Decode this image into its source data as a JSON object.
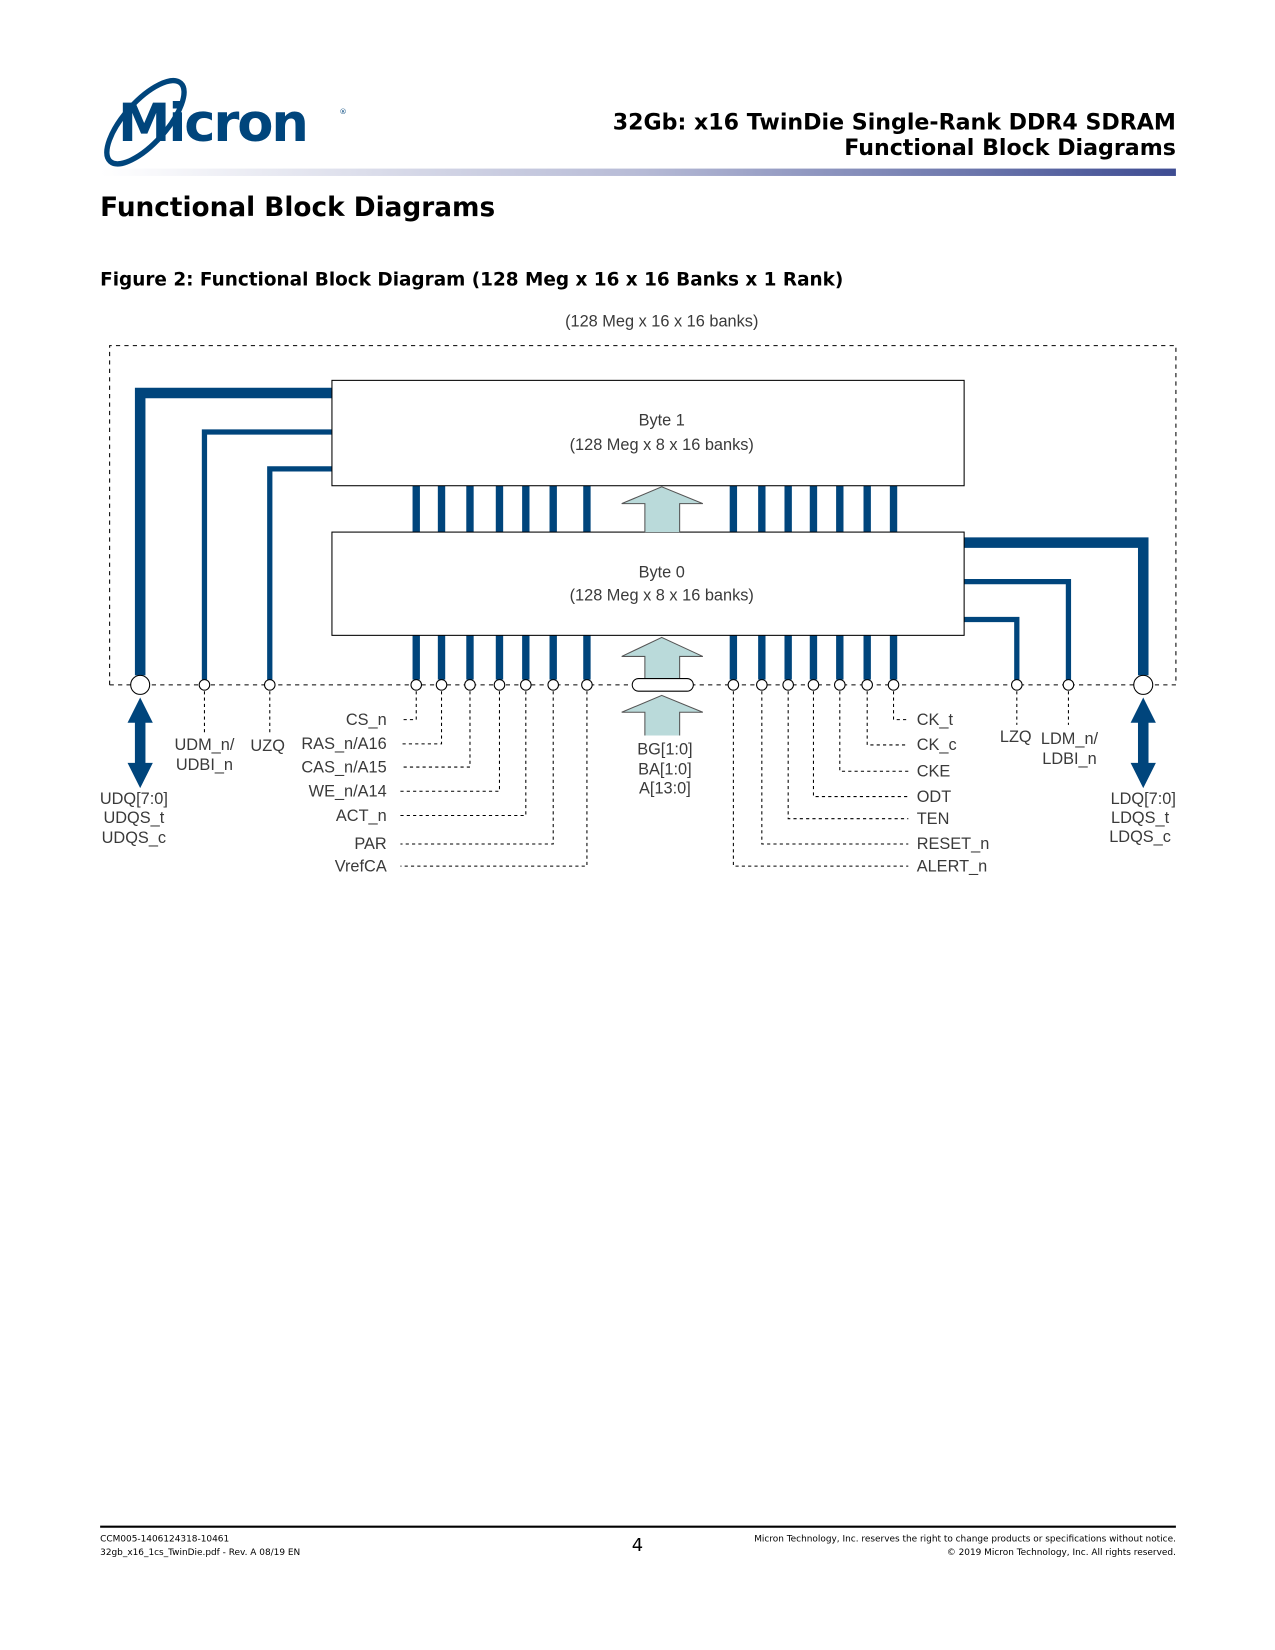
{
  "logo": {
    "text": "Micron"
  },
  "header": {
    "title_line1": "32Gb: x16 TwinDie Single-Rank DDR4 SDRAM",
    "title_line2": "Functional Block Diagrams"
  },
  "section_title": "Functional Block Diagrams",
  "figure": {
    "caption": "Figure 2: Functional Block Diagram (128 Meg x 16 x 16 Banks x 1 Rank)",
    "device_label": "(128 Meg x 16 x 16 banks)",
    "byte1": {
      "name": "Byte 1",
      "org": "(128 Meg x 8 x 16 banks)"
    },
    "byte0": {
      "name": "Byte 0",
      "org": "(128 Meg x 8 x 16 banks)"
    },
    "left_io": {
      "dq": [
        "UDQ[7:0]",
        "UDQS_t",
        "UDQS_c"
      ],
      "dm": [
        "UDM_n/",
        "UDBI_n"
      ],
      "zq": "UZQ"
    },
    "right_io": {
      "dq": [
        "LDQ[7:0]",
        "LDQS_t",
        "LDQS_c"
      ],
      "dm": [
        "LDM_n/",
        "LDBI_n"
      ],
      "zq": "LZQ"
    },
    "address": [
      "BG[1:0]",
      "BA[1:0]",
      "A[13:0]"
    ],
    "left_signals": [
      "CS_n",
      "RAS_n/A16",
      "CAS_n/A15",
      "WE_n/A14",
      "ACT_n",
      "PAR",
      "VrefCA"
    ],
    "right_signals": [
      "CK_t",
      "CK_c",
      "CKE",
      "ODT",
      "TEN",
      "RESET_n",
      "ALERT_n"
    ],
    "colors": {
      "bus": "#00457c",
      "address_arrow": "#badada"
    }
  },
  "footer": {
    "doc_id": "CCM005-1406124318-10461",
    "file": "32gb_x16_1cs_TwinDie.pdf - Rev. A 08/19 EN",
    "page_number": "4",
    "notice": "Micron Technology, Inc. reserves the right to change products or specifications without notice.",
    "copyright": "© 2019 Micron Technology, Inc. All rights reserved."
  }
}
